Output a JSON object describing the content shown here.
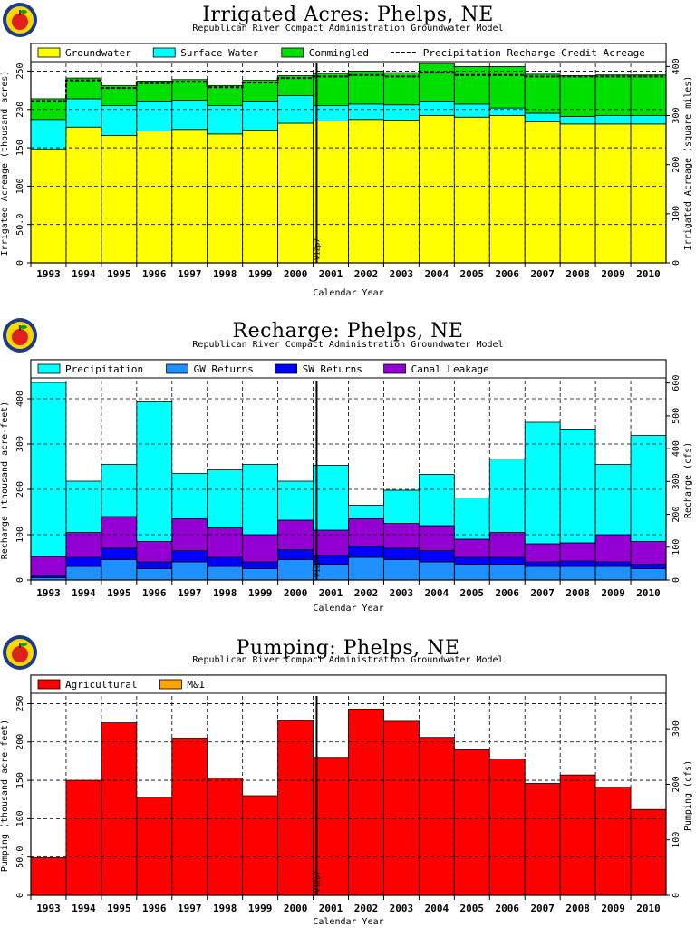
{
  "colors": {
    "background": "#ffffff",
    "frame": "#000000",
    "grid": "#000000"
  },
  "logo": {
    "icon": "apple-seal-icon",
    "fill": "#ffd700",
    "ring": "#1a3a8a",
    "apple": "#e02020"
  },
  "chart_data": [
    {
      "type": "bar",
      "stacked": true,
      "title": "Irrigated  Acres:  Phelps,  NE",
      "subtitle": "Republican River Compact Administration Groundwater Model",
      "xlabel": "Calendar Year",
      "ylabel": "Irrigated Acreage (thousand acres)",
      "ylabel_right": "Irrigated Acreage (square miles)",
      "ylim": [
        0,
        260
      ],
      "ylim_right": [
        0,
        406.25
      ],
      "yticks": [
        "0",
        "50.0",
        "100",
        "150",
        "200",
        "250"
      ],
      "yticks_right": [
        "0",
        "100",
        "200",
        "300",
        "400"
      ],
      "grid": true,
      "legend_position": "top",
      "marker_label": "V12p7",
      "categories": [
        "1993",
        "1994",
        "1995",
        "1996",
        "1997",
        "1998",
        "1999",
        "2000",
        "2001",
        "2002",
        "2003",
        "2004",
        "2005",
        "2006",
        "2007",
        "2008",
        "2009",
        "2010"
      ],
      "series": [
        {
          "name": "Groundwater",
          "color": "#ffff00",
          "values": [
            148,
            177,
            166,
            172,
            174,
            168,
            173,
            182,
            185,
            187,
            186,
            192,
            190,
            192,
            184,
            181,
            181,
            181
          ]
        },
        {
          "name": "Surface Water",
          "color": "#00ffff",
          "values": [
            39,
            37,
            39,
            39,
            38,
            37,
            38,
            36,
            20,
            20,
            20,
            19,
            17,
            10,
            11,
            10,
            11,
            11
          ]
        },
        {
          "name": "Commingled",
          "color": "#00e000",
          "values": [
            27,
            27,
            26,
            26,
            27,
            26,
            27,
            26,
            42,
            43,
            42,
            49,
            49,
            54,
            51,
            53,
            53,
            53
          ]
        }
      ],
      "line_series": {
        "name": "Precipitation Recharge Credit Acreage",
        "style": "dashed",
        "values": [
          211,
          238,
          228,
          234,
          236,
          229,
          235,
          241,
          243,
          245,
          243,
          248,
          245,
          245,
          243,
          243,
          243,
          243
        ]
      }
    },
    {
      "type": "bar",
      "stacked": true,
      "title": "Recharge:  Phelps,  NE",
      "subtitle": "Republican River Compact Administration Groundwater Model",
      "xlabel": "Calendar Year",
      "ylabel": "Recharge (thousand acre-feet)",
      "ylabel_right": "Recharge (cfs)",
      "ylim": [
        0,
        440
      ],
      "ylim_right": [
        0,
        607.4
      ],
      "yticks": [
        "0",
        "100",
        "200",
        "300",
        "400"
      ],
      "yticks_right": [
        "0",
        "100",
        "200",
        "300",
        "400",
        "500",
        "600"
      ],
      "grid": true,
      "legend_position": "top",
      "marker_label": "V12p7",
      "categories": [
        "1993",
        "1994",
        "1995",
        "1996",
        "1997",
        "1998",
        "1999",
        "2000",
        "2001",
        "2002",
        "2003",
        "2004",
        "2005",
        "2006",
        "2007",
        "2008",
        "2009",
        "2010"
      ],
      "series": [
        {
          "name": "GW Returns",
          "color": "#1e90ff",
          "values": [
            5,
            30,
            45,
            25,
            40,
            30,
            25,
            45,
            35,
            50,
            45,
            40,
            35,
            35,
            30,
            30,
            30,
            25
          ]
        },
        {
          "name": "SW Returns",
          "color": "#0000ff",
          "values": [
            5,
            20,
            25,
            15,
            25,
            20,
            15,
            22,
            20,
            25,
            25,
            25,
            15,
            15,
            10,
            12,
            10,
            10
          ]
        },
        {
          "name": "Canal Leakage",
          "color": "#9400d3",
          "values": [
            42,
            55,
            70,
            45,
            70,
            65,
            60,
            65,
            55,
            60,
            55,
            55,
            40,
            55,
            40,
            40,
            60,
            50
          ]
        },
        {
          "name": "Precipitation",
          "color": "#00ffff",
          "values": [
            384,
            113,
            115,
            308,
            100,
            128,
            155,
            86,
            143,
            30,
            73,
            113,
            91,
            162,
            268,
            251,
            155,
            234
          ]
        }
      ]
    },
    {
      "type": "bar",
      "stacked": true,
      "title": "Pumping:  Phelps,  NE",
      "subtitle": "Republican River Compact Administration Groundwater Model",
      "xlabel": "Calendar Year",
      "ylabel": "Pumping (thousand acre-feet)",
      "ylabel_right": "Pumping (cfs)",
      "ylim": [
        0,
        260
      ],
      "ylim_right": [
        0,
        359
      ],
      "yticks": [
        "0",
        "50.0",
        "100",
        "150",
        "200",
        "250"
      ],
      "yticks_right": [
        "0",
        "100",
        "200",
        "300"
      ],
      "grid": true,
      "legend_position": "top",
      "marker_label": "V12p7",
      "categories": [
        "1993",
        "1994",
        "1995",
        "1996",
        "1997",
        "1998",
        "1999",
        "2000",
        "2001",
        "2002",
        "2003",
        "2004",
        "2005",
        "2006",
        "2007",
        "2008",
        "2009",
        "2010"
      ],
      "series": [
        {
          "name": "Agricultural",
          "color": "#ff0000",
          "values": [
            49,
            150,
            225,
            128,
            205,
            153,
            130,
            228,
            180,
            243,
            227,
            206,
            190,
            178,
            146,
            157,
            141,
            112
          ]
        },
        {
          "name": "M&I",
          "color": "#ffa500",
          "values": [
            0,
            0,
            0,
            0,
            0,
            0,
            0,
            0,
            0,
            0,
            0,
            0,
            0,
            0,
            0,
            0,
            0,
            0
          ]
        }
      ]
    }
  ]
}
